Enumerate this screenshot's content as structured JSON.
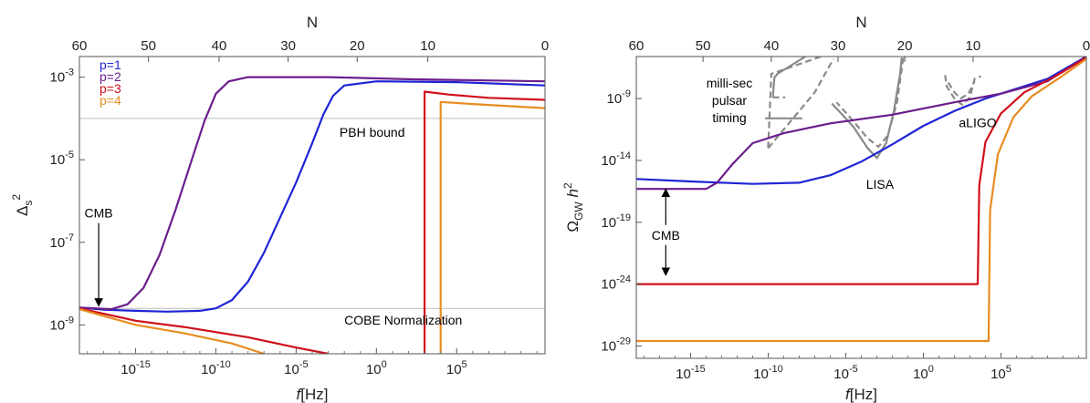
{
  "chart_data": [
    {
      "type": "line",
      "panel": "left",
      "xlabel": "f[Hz]",
      "ylabel": "Δs²",
      "top_xlabel": "N",
      "xscale": "log",
      "yscale": "log",
      "xlim_log10": [
        -18.5,
        10.5
      ],
      "ylim_log10": [
        -9.7,
        -2.5
      ],
      "xticks": [
        {
          "v": -15,
          "label": "10^-15"
        },
        {
          "v": -10,
          "label": "10^-10"
        },
        {
          "v": -5,
          "label": "10^-5"
        },
        {
          "v": 0,
          "label": "10^0"
        },
        {
          "v": 5,
          "label": "10^5"
        }
      ],
      "yticks": [
        {
          "v": -9,
          "label": "10^-9"
        },
        {
          "v": -7,
          "label": "10^-7"
        },
        {
          "v": -5,
          "label": "10^-5"
        },
        {
          "v": -3,
          "label": "10^-3"
        }
      ],
      "top_ticks": [
        {
          "v": -18.5,
          "label": "60"
        },
        {
          "v": -14.2,
          "label": "50"
        },
        {
          "v": -9.8,
          "label": "40"
        },
        {
          "v": -5.5,
          "label": "30"
        },
        {
          "v": -1.2,
          "label": "20"
        },
        {
          "v": 3.2,
          "label": "10"
        },
        {
          "v": 10.5,
          "label": "0"
        }
      ],
      "hlines": [
        {
          "y": -4.0,
          "label": "PBH bound",
          "label_x": -2.3
        },
        {
          "y": -8.6,
          "label": "COBE Normalization",
          "label_x": -2.0
        }
      ],
      "annotations": [
        {
          "text": "CMB",
          "x": -17.3,
          "y": -6.4,
          "arrow_to": [
            -17.3,
            -8.55
          ]
        }
      ],
      "legend": [
        "p=1",
        "p=2",
        "p=3",
        "p=4"
      ],
      "series": [
        {
          "name": "p=1",
          "color": "#1f24d6",
          "points": [
            [
              -18.5,
              -8.58
            ],
            [
              -17,
              -8.63
            ],
            [
              -15,
              -8.66
            ],
            [
              -13,
              -8.68
            ],
            [
              -11,
              -8.66
            ],
            [
              -10,
              -8.6
            ],
            [
              -9,
              -8.4
            ],
            [
              -8,
              -7.95
            ],
            [
              -7,
              -7.25
            ],
            [
              -6,
              -6.4
            ],
            [
              -5,
              -5.55
            ],
            [
              -4,
              -4.6
            ],
            [
              -3.3,
              -3.9
            ],
            [
              -2.7,
              -3.45
            ],
            [
              -2,
              -3.2
            ],
            [
              0,
              -3.1
            ],
            [
              5,
              -3.12
            ],
            [
              10.5,
              -3.2
            ]
          ]
        },
        {
          "name": "p=2",
          "color": "#6b1d8c",
          "points": [
            [
              -18.5,
              -8.58
            ],
            [
              -16.5,
              -8.62
            ],
            [
              -15.5,
              -8.5
            ],
            [
              -14.5,
              -8.1
            ],
            [
              -13.5,
              -7.3
            ],
            [
              -12.5,
              -6.2
            ],
            [
              -11.5,
              -5.0
            ],
            [
              -10.7,
              -4.05
            ],
            [
              -10,
              -3.4
            ],
            [
              -9.2,
              -3.1
            ],
            [
              -8,
              -3.0
            ],
            [
              -3,
              -3.0
            ],
            [
              2,
              -3.05
            ],
            [
              10.5,
              -3.1
            ]
          ]
        },
        {
          "name": "p=3",
          "color": "#d0101a",
          "points": [
            [
              -18.5,
              -8.6
            ],
            [
              -15,
              -8.9
            ],
            [
              -12,
              -9.05
            ],
            [
              -8,
              -9.3
            ],
            [
              -5,
              -9.55
            ],
            [
              -3,
              -9.7
            ]
          ]
        },
        {
          "name": "p=3",
          "color": "#d0101a",
          "points": [
            [
              3.0,
              -9.7
            ],
            [
              3.0,
              -3.35
            ],
            [
              4.5,
              -3.42
            ],
            [
              7,
              -3.5
            ],
            [
              10.5,
              -3.55
            ]
          ]
        },
        {
          "name": "p=4",
          "color": "#e88c22",
          "points": [
            [
              -18.5,
              -8.62
            ],
            [
              -15,
              -9.0
            ],
            [
              -12,
              -9.2
            ],
            [
              -9,
              -9.45
            ],
            [
              -7,
              -9.7
            ]
          ]
        },
        {
          "name": "p=4",
          "color": "#e88c22",
          "points": [
            [
              4.0,
              -9.7
            ],
            [
              4.0,
              -3.6
            ],
            [
              6,
              -3.65
            ],
            [
              10.5,
              -3.75
            ]
          ]
        }
      ]
    },
    {
      "type": "line",
      "panel": "right",
      "xlabel": "f[Hz]",
      "ylabel": "ΩGW h²",
      "top_xlabel": "N",
      "xscale": "log",
      "yscale": "log",
      "xlim_log10": [
        -18.5,
        10.5
      ],
      "ylim_log10": [
        -30,
        -5.6
      ],
      "xticks": [
        {
          "v": -15,
          "label": "10^-15"
        },
        {
          "v": -10,
          "label": "10^-10"
        },
        {
          "v": -5,
          "label": "10^-5"
        },
        {
          "v": 0,
          "label": "10^0"
        },
        {
          "v": 5,
          "label": "10^5"
        }
      ],
      "yticks": [
        {
          "v": -29,
          "label": "10^-29"
        },
        {
          "v": -24,
          "label": "10^-24"
        },
        {
          "v": -19,
          "label": "10^-19"
        },
        {
          "v": -14,
          "label": "10^-14"
        },
        {
          "v": -9,
          "label": "10^-9"
        }
      ],
      "top_ticks": [
        {
          "v": -18.5,
          "label": "60"
        },
        {
          "v": -14.2,
          "label": "50"
        },
        {
          "v": -9.8,
          "label": "40"
        },
        {
          "v": -5.5,
          "label": "30"
        },
        {
          "v": -1.2,
          "label": "20"
        },
        {
          "v": 3.2,
          "label": "10"
        },
        {
          "v": 10.5,
          "label": "0"
        }
      ],
      "annotations": [
        {
          "text": "milli-sec",
          "x": -12.5,
          "y": -8.1
        },
        {
          "text": "pulsar",
          "x": -12.5,
          "y": -9.5
        },
        {
          "text": "timing",
          "x": -12.5,
          "y": -10.9
        },
        {
          "text": "LISA",
          "x": -2.8,
          "y": -16.3
        },
        {
          "text": "aLIGO",
          "x": 3.5,
          "y": -11.3
        },
        {
          "text": "CMB",
          "x": -16.6,
          "y": -20.4,
          "arrow_range": [
            -16.6,
            -16.3,
            -23.3
          ]
        }
      ],
      "series": [
        {
          "name": "p=1",
          "color": "#1f24d6",
          "points": [
            [
              -18.5,
              -15.5
            ],
            [
              -15,
              -15.7
            ],
            [
              -11,
              -15.9
            ],
            [
              -8,
              -15.8
            ],
            [
              -6,
              -15.2
            ],
            [
              -4,
              -14.1
            ],
            [
              -2,
              -12.7
            ],
            [
              0,
              -11.2
            ],
            [
              2,
              -10.0
            ],
            [
              4,
              -9.0
            ],
            [
              6,
              -8.2
            ],
            [
              8,
              -7.4
            ],
            [
              10.5,
              -5.6
            ]
          ]
        },
        {
          "name": "p=2",
          "color": "#6b1d8c",
          "points": [
            [
              -18.5,
              -16.3
            ],
            [
              -14,
              -16.3
            ],
            [
              -13.3,
              -15.8
            ],
            [
              -12.3,
              -14.3
            ],
            [
              -11,
              -12.6
            ],
            [
              -9,
              -11.8
            ],
            [
              -6,
              -11.0
            ],
            [
              -2,
              -10.3
            ],
            [
              2,
              -9.3
            ],
            [
              5,
              -8.6
            ],
            [
              8,
              -7.6
            ],
            [
              10.5,
              -5.6
            ]
          ]
        },
        {
          "name": "p=3",
          "color": "#d0101a",
          "points": [
            [
              -18.5,
              -24.0
            ],
            [
              3.5,
              -24.0
            ],
            [
              3.6,
              -16
            ],
            [
              4,
              -12.5
            ],
            [
              5,
              -10.2
            ],
            [
              6.5,
              -8.5
            ],
            [
              8.5,
              -7.2
            ],
            [
              10.5,
              -5.7
            ]
          ]
        },
        {
          "name": "p=4",
          "color": "#e88c22",
          "points": [
            [
              -18.5,
              -28.6
            ],
            [
              4.2,
              -28.6
            ],
            [
              4.3,
              -18
            ],
            [
              4.8,
              -13.5
            ],
            [
              5.8,
              -10.5
            ],
            [
              7,
              -8.8
            ],
            [
              8.8,
              -7.3
            ],
            [
              10.5,
              -5.8
            ]
          ]
        }
      ],
      "sensitivity_curves": [
        {
          "name": "milli-sec pulsar timing",
          "color": "#8a8a8a",
          "dash": false,
          "points": [
            [
              -9.7,
              -8.9
            ],
            [
              -9.6,
              -7.3
            ],
            [
              -9.4,
              -7.0
            ],
            [
              -7.6,
              -5.6
            ]
          ]
        },
        {
          "name": "milli-sec pulsar timing",
          "color": "#8a8a8a",
          "dash": false,
          "points": [
            [
              -10.2,
              -10.6
            ],
            [
              -7.8,
              -10.6
            ]
          ]
        },
        {
          "name": "milli-sec pulsar timing",
          "color": "#8a8a8a",
          "dash": true,
          "points": [
            [
              -9.7,
              -8.9
            ],
            [
              -8.9,
              -8.9
            ]
          ]
        },
        {
          "name": "milli-sec pulsar timing",
          "color": "#8a8a8a",
          "dash": true,
          "points": [
            [
              -10.0,
              -13.0
            ],
            [
              -9.8,
              -7.0
            ],
            [
              -6.6,
              -5.6
            ]
          ]
        },
        {
          "name": "milli-sec pulsar timing",
          "color": "#8a8a8a",
          "dash": true,
          "points": [
            [
              -10.0,
              -13.0
            ],
            [
              -7.0,
              -8.5
            ],
            [
              -5.8,
              -5.8
            ]
          ]
        },
        {
          "name": "LISA",
          "color": "#8a8a8a",
          "dash": false,
          "points": [
            [
              -1.4,
              -5.7
            ],
            [
              -1.5,
              -7.0
            ],
            [
              -1.9,
              -10.0
            ],
            [
              -2.4,
              -12.6
            ],
            [
              -3.0,
              -13.8
            ],
            [
              -3.6,
              -13.0
            ],
            [
              -4.5,
              -11.3
            ],
            [
              -5.3,
              -10.2
            ],
            [
              -5.9,
              -9.4
            ]
          ]
        },
        {
          "name": "LISA",
          "color": "#8a8a8a",
          "dash": true,
          "points": [
            [
              -1.3,
              -5.7
            ],
            [
              -1.7,
              -9.3
            ],
            [
              -2.3,
              -12.0
            ],
            [
              -2.9,
              -12.9
            ],
            [
              -3.6,
              -12.2
            ],
            [
              -4.6,
              -10.7
            ],
            [
              -5.6,
              -9.3
            ]
          ]
        },
        {
          "name": "aLIGO",
          "color": "#8a8a8a",
          "dash": true,
          "points": [
            [
              1.4,
              -7.1
            ],
            [
              1.5,
              -8.0
            ],
            [
              2.0,
              -9.0
            ],
            [
              2.5,
              -9.5
            ],
            [
              3.0,
              -8.9
            ],
            [
              3.3,
              -7.4
            ],
            [
              3.7,
              -7.2
            ]
          ]
        },
        {
          "name": "aLIGO",
          "color": "#8a8a8a",
          "dash": true,
          "points": [
            [
              1.6,
              -7.7
            ],
            [
              2.0,
              -8.5
            ],
            [
              2.4,
              -9.0
            ],
            [
              2.9,
              -8.6
            ],
            [
              3.3,
              -7.6
            ]
          ]
        }
      ]
    }
  ],
  "colors": {
    "p1": "#1f24d6",
    "p2": "#6b1d8c",
    "p3": "#d0101a",
    "p4": "#e88c22",
    "grid": "#c8c8c8",
    "sensitivity": "#8a8a8a"
  }
}
